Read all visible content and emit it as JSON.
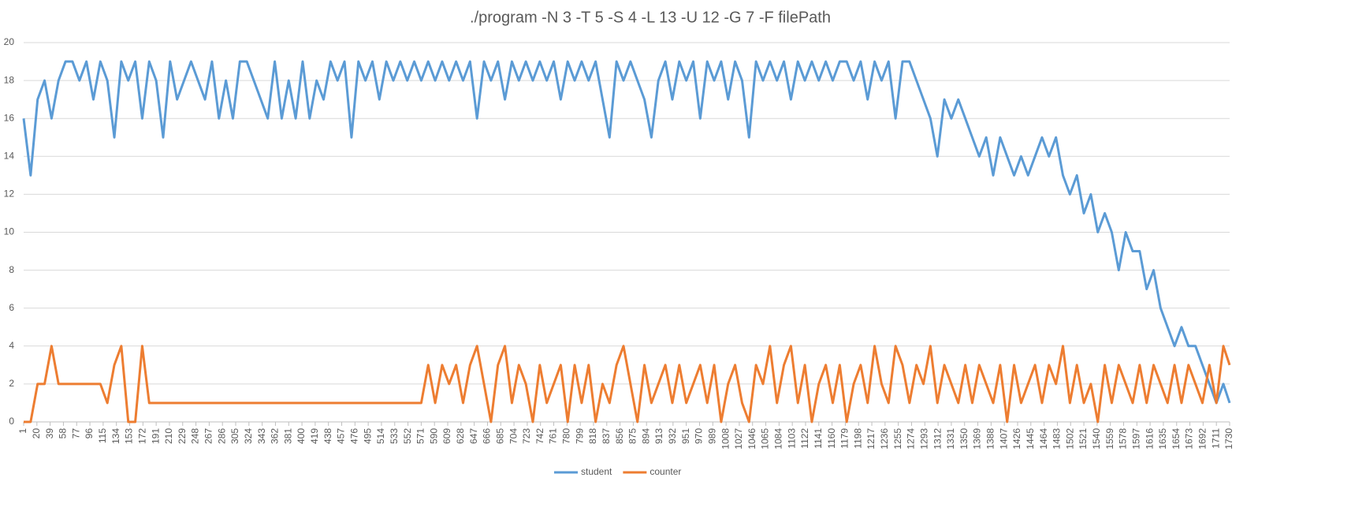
{
  "chart_data": {
    "type": "line",
    "title": "./program -N 3 -T 5 -S 4 -L 13 -U 12 -G 7 -F filePath",
    "x": [
      1,
      11,
      21,
      31,
      41,
      51,
      61,
      71,
      81,
      91,
      101,
      111,
      121,
      131,
      141,
      151,
      161,
      171,
      181,
      191,
      201,
      211,
      221,
      231,
      241,
      251,
      261,
      271,
      281,
      291,
      301,
      311,
      321,
      331,
      341,
      351,
      361,
      371,
      381,
      391,
      401,
      411,
      421,
      431,
      441,
      451,
      461,
      471,
      481,
      491,
      501,
      511,
      521,
      531,
      541,
      551,
      561,
      571,
      581,
      591,
      601,
      611,
      621,
      631,
      641,
      651,
      661,
      671,
      681,
      691,
      701,
      711,
      721,
      731,
      741,
      751,
      761,
      771,
      781,
      791,
      801,
      811,
      821,
      831,
      841,
      851,
      861,
      871,
      881,
      891,
      901,
      911,
      921,
      931,
      941,
      951,
      961,
      971,
      981,
      991,
      1001,
      1011,
      1021,
      1031,
      1041,
      1051,
      1061,
      1071,
      1081,
      1091,
      1101,
      1111,
      1121,
      1131,
      1141,
      1151,
      1161,
      1171,
      1181,
      1191,
      1201,
      1211,
      1221,
      1231,
      1241,
      1251,
      1261,
      1271,
      1281,
      1291,
      1301,
      1311,
      1321,
      1331,
      1341,
      1351,
      1361,
      1371,
      1381,
      1391,
      1401,
      1411,
      1421,
      1431,
      1441,
      1451,
      1461,
      1471,
      1481,
      1491,
      1501,
      1511,
      1521,
      1531,
      1541,
      1551,
      1561,
      1571,
      1581,
      1591,
      1601,
      1611,
      1621,
      1631,
      1641,
      1651,
      1661,
      1671,
      1681,
      1691,
      1701,
      1711,
      1721,
      1730
    ],
    "series": [
      {
        "name": "student",
        "color": "#5b9bd5",
        "values": [
          16,
          13,
          17,
          18,
          16,
          18,
          19,
          19,
          18,
          19,
          17,
          19,
          18,
          15,
          19,
          18,
          19,
          16,
          19,
          18,
          15,
          19,
          17,
          18,
          19,
          18,
          17,
          19,
          16,
          18,
          16,
          19,
          19,
          18,
          17,
          16,
          19,
          16,
          18,
          16,
          19,
          16,
          18,
          17,
          19,
          18,
          19,
          15,
          19,
          18,
          19,
          17,
          19,
          18,
          19,
          18,
          19,
          18,
          19,
          18,
          19,
          18,
          19,
          18,
          19,
          16,
          19,
          18,
          19,
          17,
          19,
          18,
          19,
          18,
          19,
          18,
          19,
          17,
          19,
          18,
          19,
          18,
          19,
          17,
          15,
          19,
          18,
          19,
          18,
          17,
          15,
          18,
          19,
          17,
          19,
          18,
          19,
          16,
          19,
          18,
          19,
          17,
          19,
          18,
          15,
          19,
          18,
          19,
          18,
          19,
          17,
          19,
          18,
          19,
          18,
          19,
          18,
          19,
          19,
          18,
          19,
          17,
          19,
          18,
          19,
          16,
          19,
          19,
          18,
          17,
          16,
          14,
          17,
          16,
          17,
          16,
          15,
          14,
          15,
          13,
          15,
          14,
          13,
          14,
          13,
          14,
          15,
          14,
          15,
          13,
          12,
          13,
          11,
          12,
          10,
          11,
          10,
          8,
          10,
          9,
          9,
          7,
          8,
          6,
          5,
          4,
          5,
          4,
          4,
          3,
          2,
          1,
          2,
          1
        ]
      },
      {
        "name": "counter",
        "color": "#ed7d31",
        "values": [
          0,
          0,
          2,
          2,
          4,
          2,
          2,
          2,
          2,
          2,
          2,
          2,
          1,
          3,
          4,
          0,
          0,
          4,
          1,
          1,
          1,
          1,
          1,
          1,
          1,
          1,
          1,
          1,
          1,
          1,
          1,
          1,
          1,
          1,
          1,
          1,
          1,
          1,
          1,
          1,
          1,
          1,
          1,
          1,
          1,
          1,
          1,
          1,
          1,
          1,
          1,
          1,
          1,
          1,
          1,
          1,
          1,
          1,
          3,
          1,
          3,
          2,
          3,
          1,
          3,
          4,
          2,
          0,
          3,
          4,
          1,
          3,
          2,
          0,
          3,
          1,
          2,
          3,
          0,
          3,
          1,
          3,
          0,
          2,
          1,
          3,
          4,
          2,
          0,
          3,
          1,
          2,
          3,
          1,
          3,
          1,
          2,
          3,
          1,
          3,
          0,
          2,
          3,
          1,
          0,
          3,
          2,
          4,
          1,
          3,
          4,
          1,
          3,
          0,
          2,
          3,
          1,
          3,
          0,
          2,
          3,
          1,
          4,
          2,
          1,
          4,
          3,
          1,
          3,
          2,
          4,
          1,
          3,
          2,
          1,
          3,
          1,
          3,
          2,
          1,
          3,
          0,
          3,
          1,
          2,
          3,
          1,
          3,
          2,
          4,
          1,
          3,
          1,
          2,
          0,
          3,
          1,
          3,
          2,
          1,
          3,
          1,
          3,
          2,
          1,
          3,
          1,
          3,
          2,
          1,
          3,
          1,
          4,
          3
        ]
      }
    ],
    "xlim": [
      1,
      1730
    ],
    "xticks": [
      1,
      20,
      39,
      58,
      77,
      96,
      115,
      134,
      153,
      172,
      191,
      210,
      229,
      248,
      267,
      286,
      305,
      324,
      343,
      362,
      381,
      400,
      419,
      438,
      457,
      476,
      495,
      514,
      533,
      552,
      571,
      590,
      609,
      628,
      647,
      666,
      685,
      704,
      723,
      742,
      761,
      780,
      799,
      818,
      837,
      856,
      875,
      894,
      913,
      932,
      951,
      970,
      989,
      1008,
      1027,
      1046,
      1065,
      1084,
      1103,
      1122,
      1141,
      1160,
      1179,
      1198,
      1217,
      1236,
      1255,
      1274,
      1293,
      1312,
      1331,
      1350,
      1369,
      1388,
      1407,
      1426,
      1445,
      1464,
      1483,
      1502,
      1521,
      1540,
      1559,
      1578,
      1597,
      1616,
      1635,
      1654,
      1673,
      1692,
      1711,
      1730
    ],
    "ylim": [
      0,
      20
    ],
    "yticks": [
      0,
      2,
      4,
      6,
      8,
      10,
      12,
      14,
      16,
      18,
      20
    ],
    "grid": true,
    "legend": "bottom"
  }
}
